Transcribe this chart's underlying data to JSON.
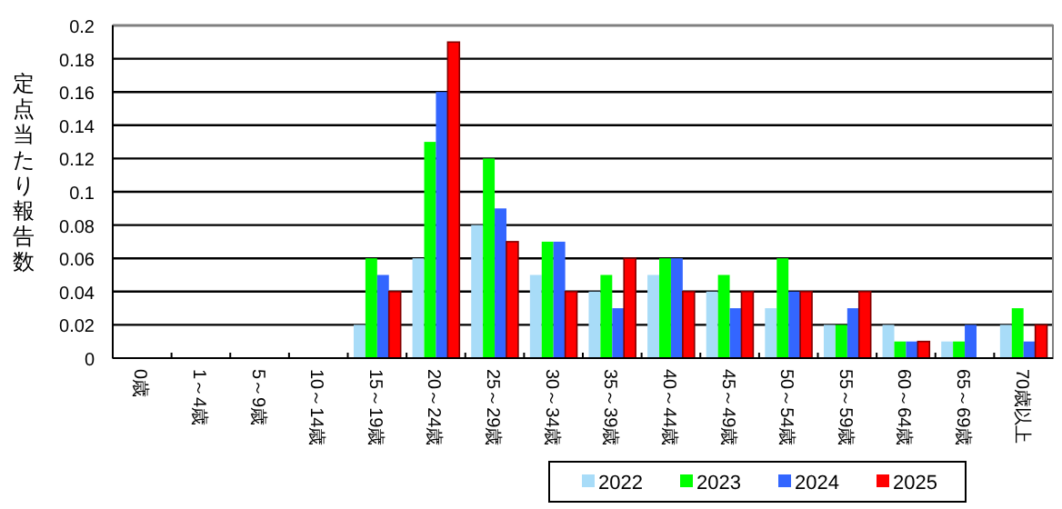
{
  "chart_data": {
    "type": "bar",
    "ylabel": "定点当たり報告数",
    "categories": [
      "0歳",
      "1～4歳",
      "5～9歳",
      "10～14歳",
      "15～19歳",
      "20～24歳",
      "25～29歳",
      "30～34歳",
      "35～39歳",
      "40～44歳",
      "45～49歳",
      "50～54歳",
      "55～59歳",
      "60～64歳",
      "65～69歳",
      "70歳以上"
    ],
    "series": [
      {
        "name": "2022",
        "color": "#a8dcf8",
        "values": [
          0,
          0,
          0,
          0,
          0.02,
          0.06,
          0.08,
          0.05,
          0.04,
          0.05,
          0.04,
          0.03,
          0.02,
          0.02,
          0.01,
          0.02
        ]
      },
      {
        "name": "2023",
        "color": "#00ff00",
        "values": [
          0,
          0,
          0,
          0,
          0.06,
          0.13,
          0.12,
          0.07,
          0.05,
          0.06,
          0.05,
          0.06,
          0.02,
          0.01,
          0.01,
          0.03
        ]
      },
      {
        "name": "2024",
        "color": "#3366ff",
        "values": [
          0,
          0,
          0,
          0,
          0.05,
          0.16,
          0.09,
          0.07,
          0.03,
          0.06,
          0.03,
          0.04,
          0.03,
          0.01,
          0.02,
          0.01
        ]
      },
      {
        "name": "2025",
        "color": "#ff0000",
        "values": [
          0,
          0,
          0,
          0,
          0.04,
          0.19,
          0.07,
          0.04,
          0.06,
          0.04,
          0.04,
          0.04,
          0.04,
          0.01,
          0,
          0.02
        ]
      }
    ],
    "ylim": [
      0,
      0.2
    ],
    "yticks": [
      0,
      0.02,
      0.04,
      0.06,
      0.08,
      0.1,
      0.12,
      0.14,
      0.16,
      0.18,
      0.2
    ],
    "grid": "y",
    "legend": "bottom right"
  }
}
